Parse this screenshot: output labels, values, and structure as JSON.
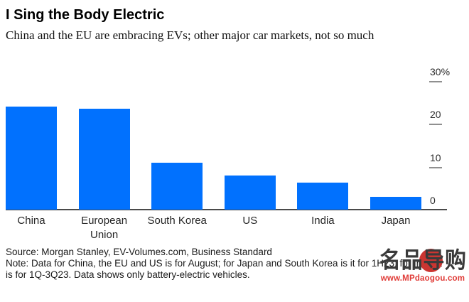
{
  "header": {
    "title": "I Sing the Body Electric",
    "subtitle": "China and the EU are embracing EVs; other major car markets, not so much"
  },
  "chart_data": {
    "type": "bar",
    "title": "I Sing the Body Electric",
    "subtitle": "China and the EU are embracing EVs; other major car markets, not so much",
    "categories": [
      "China",
      "European Union",
      "South Korea",
      "US",
      "India",
      "Japan"
    ],
    "category_lines": [
      [
        "China"
      ],
      [
        "European",
        "Union"
      ],
      [
        "South Korea"
      ],
      [
        "US"
      ],
      [
        "India"
      ],
      [
        "Japan"
      ]
    ],
    "values": [
      24,
      23.5,
      11,
      8,
      6.3,
      3
    ],
    "unit": "%",
    "ylabel": "",
    "xlabel": "",
    "ylim": [
      0,
      30
    ],
    "yticks": [
      {
        "label": "30%",
        "value": 30
      },
      {
        "label": "20",
        "value": 20
      },
      {
        "label": "10",
        "value": 10
      },
      {
        "label": "0",
        "value": 0
      }
    ],
    "legend": null,
    "grid": false,
    "axis_position": "right",
    "bar_color": "#0171fe"
  },
  "footer": {
    "source": "Source: Morgan Stanley, EV-Volumes.com, Business Standard",
    "note_line1": "Note: Data for China, the EU and US is for August; for Japan and South Korea is it for 1H23; for India it",
    "note_line2": "is for 1Q-3Q23. Data shows only battery-electric vehicles."
  },
  "watermark": {
    "logo_text": "名品导购",
    "url": "www.MPdaogou.com",
    "red": "#cb3531",
    "gray": "#3a3a3a"
  }
}
